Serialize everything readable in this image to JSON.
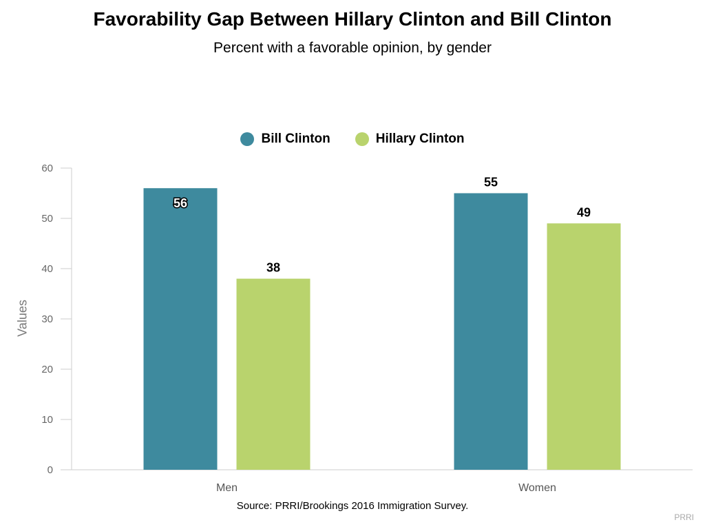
{
  "chart_data": {
    "type": "bar",
    "title": "Favorability Gap Between Hillary Clinton and Bill Clinton",
    "subtitle": "Percent with a favorable opinion, by gender",
    "ylabel": "Values",
    "xlabel": "",
    "categories": [
      "Men",
      "Women"
    ],
    "series": [
      {
        "name": "Bill Clinton",
        "values": [
          56,
          55
        ],
        "color": "#3e8a9e"
      },
      {
        "name": "Hillary Clinton",
        "values": [
          38,
          49
        ],
        "color": "#b9d36d"
      }
    ],
    "ylim": [
      0,
      60
    ],
    "yticks": [
      0,
      10,
      20,
      30,
      40,
      50,
      60
    ],
    "legend_position": "top-center",
    "grid": false
  },
  "source": "Source: PRRI/Brookings 2016 Immigration Survey.",
  "credit": "PRRI"
}
